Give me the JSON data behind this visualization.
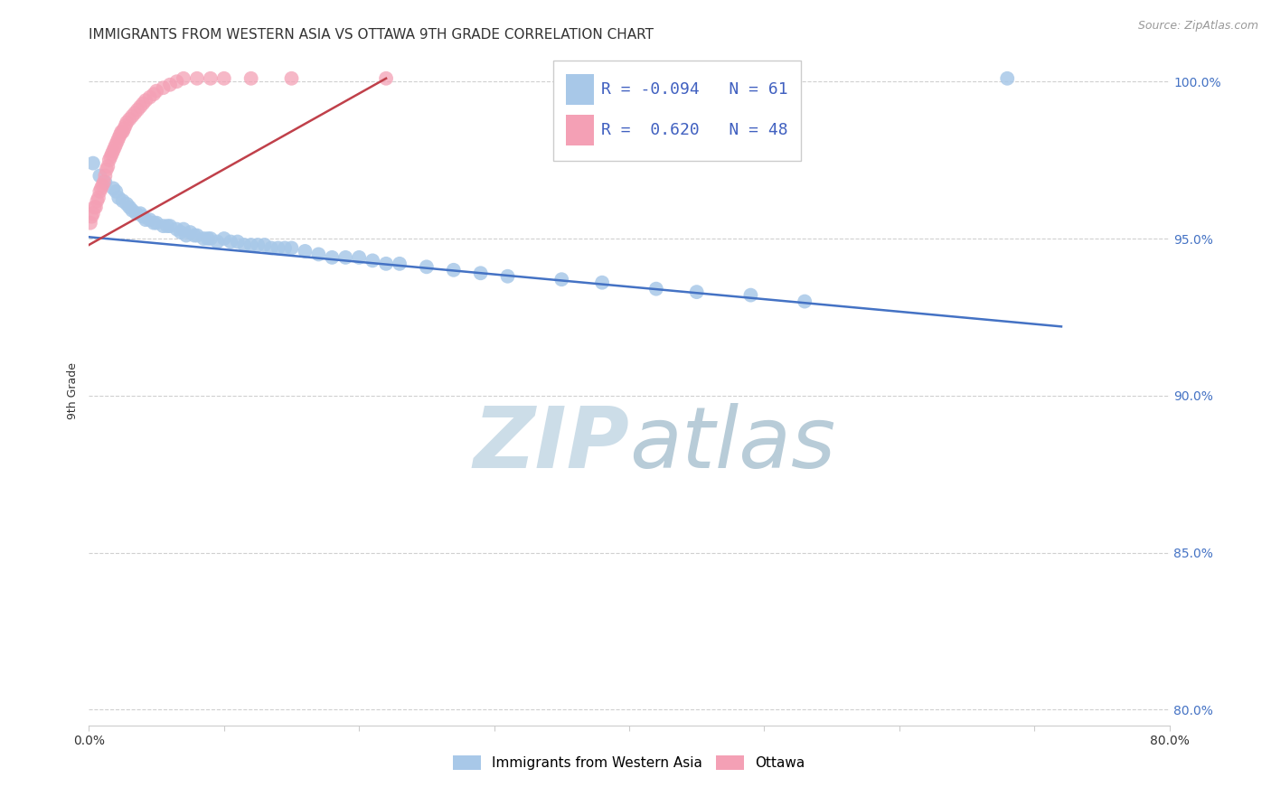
{
  "title": "IMMIGRANTS FROM WESTERN ASIA VS OTTAWA 9TH GRADE CORRELATION CHART",
  "source": "Source: ZipAtlas.com",
  "ylabel": "9th Grade",
  "watermark_zip": "ZIP",
  "watermark_atlas": "atlas",
  "xmin": 0.0,
  "xmax": 0.8,
  "ymin": 0.795,
  "ymax": 1.008,
  "xticks": [
    0.0,
    0.1,
    0.2,
    0.3,
    0.4,
    0.5,
    0.6,
    0.7,
    0.8
  ],
  "xticklabels": [
    "0.0%",
    "",
    "",
    "",
    "",
    "",
    "",
    "",
    "80.0%"
  ],
  "yticks": [
    0.8,
    0.85,
    0.9,
    0.95,
    1.0
  ],
  "yticklabels": [
    "80.0%",
    "85.0%",
    "90.0%",
    "95.0%",
    "100.0%"
  ],
  "legend_R1": "-0.094",
  "legend_N1": "61",
  "legend_R2": "0.620",
  "legend_N2": "48",
  "blue_color": "#a8c8e8",
  "pink_color": "#f4a0b5",
  "blue_line_color": "#4472c4",
  "pink_line_color": "#c0404a",
  "blue_scatter_x": [
    0.003,
    0.008,
    0.012,
    0.018,
    0.02,
    0.022,
    0.025,
    0.028,
    0.03,
    0.032,
    0.035,
    0.038,
    0.04,
    0.042,
    0.045,
    0.048,
    0.05,
    0.055,
    0.058,
    0.06,
    0.065,
    0.068,
    0.07,
    0.072,
    0.075,
    0.078,
    0.08,
    0.085,
    0.088,
    0.09,
    0.095,
    0.1,
    0.105,
    0.11,
    0.115,
    0.12,
    0.125,
    0.13,
    0.135,
    0.14,
    0.145,
    0.15,
    0.16,
    0.17,
    0.18,
    0.19,
    0.2,
    0.21,
    0.22,
    0.23,
    0.25,
    0.27,
    0.29,
    0.31,
    0.35,
    0.38,
    0.42,
    0.45,
    0.49,
    0.53,
    0.68
  ],
  "blue_scatter_y": [
    0.974,
    0.97,
    0.968,
    0.966,
    0.965,
    0.963,
    0.962,
    0.961,
    0.96,
    0.959,
    0.958,
    0.958,
    0.957,
    0.956,
    0.956,
    0.955,
    0.955,
    0.954,
    0.954,
    0.954,
    0.953,
    0.952,
    0.953,
    0.951,
    0.952,
    0.951,
    0.951,
    0.95,
    0.95,
    0.95,
    0.949,
    0.95,
    0.949,
    0.949,
    0.948,
    0.948,
    0.948,
    0.948,
    0.947,
    0.947,
    0.947,
    0.947,
    0.946,
    0.945,
    0.944,
    0.944,
    0.944,
    0.943,
    0.942,
    0.942,
    0.941,
    0.94,
    0.939,
    0.938,
    0.937,
    0.936,
    0.934,
    0.933,
    0.932,
    0.93,
    1.001
  ],
  "pink_scatter_x": [
    0.001,
    0.002,
    0.003,
    0.004,
    0.005,
    0.006,
    0.007,
    0.008,
    0.009,
    0.01,
    0.011,
    0.012,
    0.013,
    0.014,
    0.015,
    0.016,
    0.017,
    0.018,
    0.019,
    0.02,
    0.021,
    0.022,
    0.023,
    0.024,
    0.025,
    0.026,
    0.027,
    0.028,
    0.03,
    0.032,
    0.034,
    0.036,
    0.038,
    0.04,
    0.042,
    0.045,
    0.048,
    0.05,
    0.055,
    0.06,
    0.065,
    0.07,
    0.08,
    0.09,
    0.1,
    0.12,
    0.15,
    0.22
  ],
  "pink_scatter_y": [
    0.955,
    0.957,
    0.958,
    0.96,
    0.96,
    0.962,
    0.963,
    0.965,
    0.966,
    0.967,
    0.968,
    0.97,
    0.972,
    0.973,
    0.975,
    0.976,
    0.977,
    0.978,
    0.979,
    0.98,
    0.981,
    0.982,
    0.983,
    0.984,
    0.984,
    0.985,
    0.986,
    0.987,
    0.988,
    0.989,
    0.99,
    0.991,
    0.992,
    0.993,
    0.994,
    0.995,
    0.996,
    0.997,
    0.998,
    0.999,
    1.0,
    1.001,
    1.001,
    1.001,
    1.001,
    1.001,
    1.001,
    1.001
  ],
  "blue_line_x": [
    0.0,
    0.72
  ],
  "blue_line_y": [
    0.9505,
    0.922
  ],
  "pink_line_x": [
    0.0,
    0.22
  ],
  "pink_line_y": [
    0.948,
    1.001
  ],
  "background_color": "#ffffff",
  "grid_color": "#d0d0d0",
  "title_fontsize": 11,
  "axis_label_fontsize": 9,
  "tick_fontsize": 10,
  "right_tick_color": "#4472c4",
  "bottom_legend_items": [
    "Immigrants from Western Asia",
    "Ottawa"
  ]
}
